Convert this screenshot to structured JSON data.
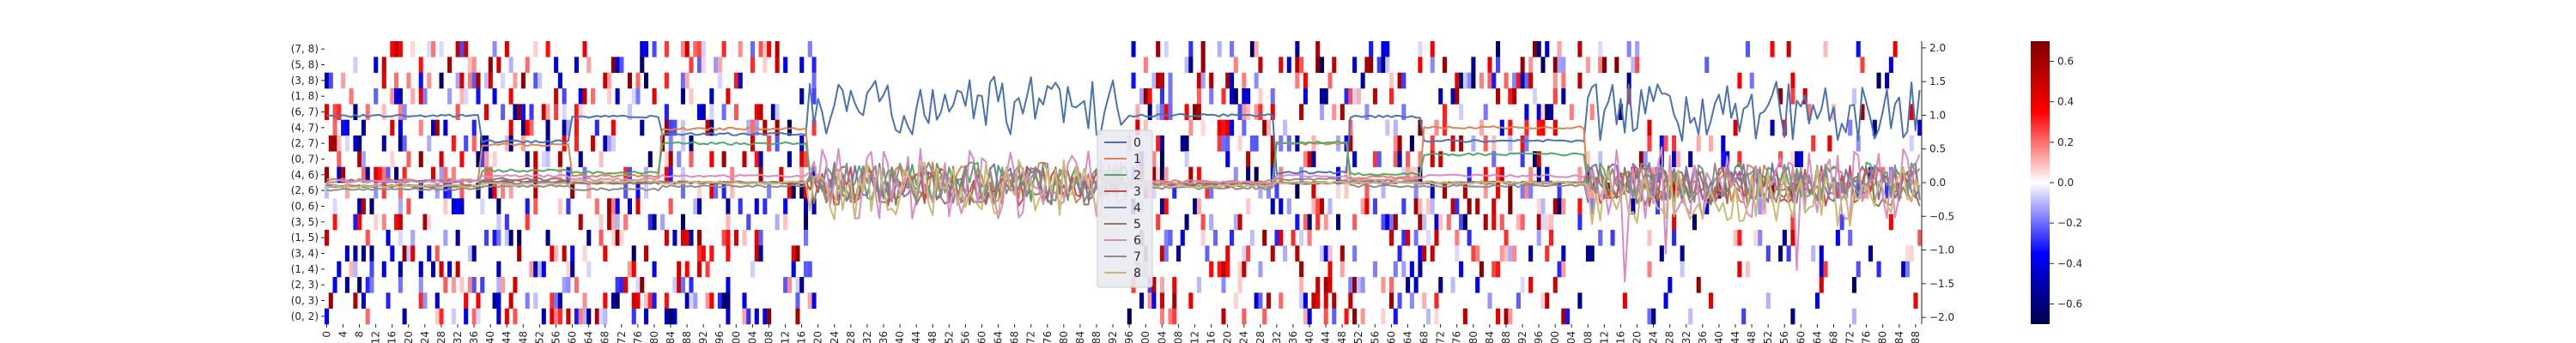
{
  "chart_data": {
    "type": "heatmap",
    "title": "",
    "xlabel": "",
    "ylabel": "",
    "x_tick_labels": [
      "0",
      "4",
      "8",
      "12",
      "16",
      "20",
      "24",
      "28",
      "32",
      "36",
      "40",
      "44",
      "48",
      "52",
      "56",
      "60",
      "64",
      "68",
      "72",
      "76",
      "80",
      "84",
      "88",
      "92",
      "96",
      "100",
      "104",
      "108",
      "112",
      "116",
      "120",
      "124",
      "128",
      "132",
      "136",
      "140",
      "144",
      "148",
      "152",
      "156",
      "160",
      "164",
      "168",
      "172",
      "176",
      "180",
      "184",
      "188",
      "192",
      "196",
      "200",
      "204",
      "208",
      "212",
      "216",
      "220",
      "224",
      "228",
      "232",
      "236",
      "240",
      "244",
      "248",
      "252",
      "256",
      "260",
      "264",
      "268",
      "272",
      "276",
      "280",
      "284",
      "288",
      "292",
      "296",
      "300",
      "304",
      "308",
      "312",
      "316",
      "320",
      "324",
      "328",
      "332",
      "336",
      "340",
      "344",
      "348",
      "352",
      "356",
      "360",
      "364",
      "368",
      "372",
      "376",
      "380",
      "384",
      "388"
    ],
    "y_tick_labels": [
      "(7, 8)",
      "(5, 8)",
      "(3, 8)",
      "(1, 8)",
      "(6, 7)",
      "(4, 7)",
      "(2, 7)",
      "(0, 7)",
      "(4, 6)",
      "(2, 6)",
      "(0, 6)",
      "(3, 5)",
      "(1, 5)",
      "(3, 4)",
      "(1, 4)",
      "(2, 3)",
      "(0, 3)",
      "(0, 2)"
    ],
    "n_columns": 390,
    "n_rows": 18,
    "colorbar": {
      "colormap": "seismic",
      "range": [
        -0.7,
        0.7
      ],
      "ticks": [
        "0.6",
        "0.4",
        "0.2",
        "0.0",
        "−0.2",
        "−0.4",
        "−0.6"
      ]
    },
    "overlay": {
      "type": "line",
      "y_axis_side": "right",
      "ylim": [
        -2.1,
        2.1
      ],
      "y_ticks": [
        "2.0",
        "1.5",
        "1.0",
        "0.5",
        "0.0",
        "−0.5",
        "−1.0",
        "−1.5",
        "−2.0"
      ],
      "series": [
        {
          "name": "0",
          "color": "#4c72b0"
        },
        {
          "name": "1",
          "color": "#dd8452"
        },
        {
          "name": "2",
          "color": "#55a868"
        },
        {
          "name": "3",
          "color": "#c44e52"
        },
        {
          "name": "4",
          "color": "#8172b3"
        },
        {
          "name": "5",
          "color": "#937860"
        },
        {
          "name": "6",
          "color": "#da8bc3"
        },
        {
          "name": "7",
          "color": "#8c8c8c"
        },
        {
          "name": "8",
          "color": "#ccb974"
        }
      ],
      "regimes": [
        {
          "start": 0,
          "end": 38,
          "levels": [
            0.99,
            0.04,
            -0.05,
            -0.05,
            0.02,
            -0.05,
            0.02,
            -0.1,
            -0.05
          ]
        },
        {
          "start": 38,
          "end": 60,
          "levels": [
            0.61,
            0.56,
            0.18,
            0.02,
            0.0,
            0.05,
            0.1,
            -0.05,
            -0.02
          ]
        },
        {
          "start": 60,
          "end": 82,
          "levels": [
            0.98,
            0.1,
            0.15,
            0.0,
            0.0,
            0.0,
            0.05,
            -0.1,
            0.02
          ]
        },
        {
          "start": 82,
          "end": 118,
          "levels": [
            0.72,
            0.8,
            0.58,
            0.0,
            0.0,
            0.0,
            0.1,
            -0.05,
            0.0
          ]
        },
        {
          "start": 118,
          "end": 196,
          "noisy": true,
          "levels": [
            1.15,
            0.0,
            0.0,
            -0.05,
            0.0,
            -0.05,
            0.0,
            0.0,
            -0.1
          ]
        },
        {
          "start": 196,
          "end": 232,
          "levels": [
            1.0,
            0.02,
            -0.02,
            -0.05,
            -0.02,
            -0.02,
            0.0,
            -0.08,
            -0.05
          ]
        },
        {
          "start": 232,
          "end": 250,
          "levels": [
            0.15,
            0.58,
            0.6,
            0.0,
            0.0,
            0.0,
            0.1,
            0.05,
            0.0
          ]
        },
        {
          "start": 250,
          "end": 268,
          "levels": [
            0.98,
            0.08,
            0.13,
            0.0,
            0.0,
            0.02,
            0.05,
            -0.05,
            0.0
          ]
        },
        {
          "start": 268,
          "end": 308,
          "levels": [
            0.62,
            0.82,
            0.42,
            0.0,
            0.0,
            0.0,
            0.1,
            -0.05,
            0.0
          ]
        },
        {
          "start": 308,
          "end": 390,
          "noisy": true,
          "levels": [
            1.05,
            0.0,
            0.0,
            -0.05,
            0.0,
            -0.05,
            0.0,
            0.0,
            -0.2
          ]
        }
      ]
    },
    "legend_placement": "center"
  }
}
